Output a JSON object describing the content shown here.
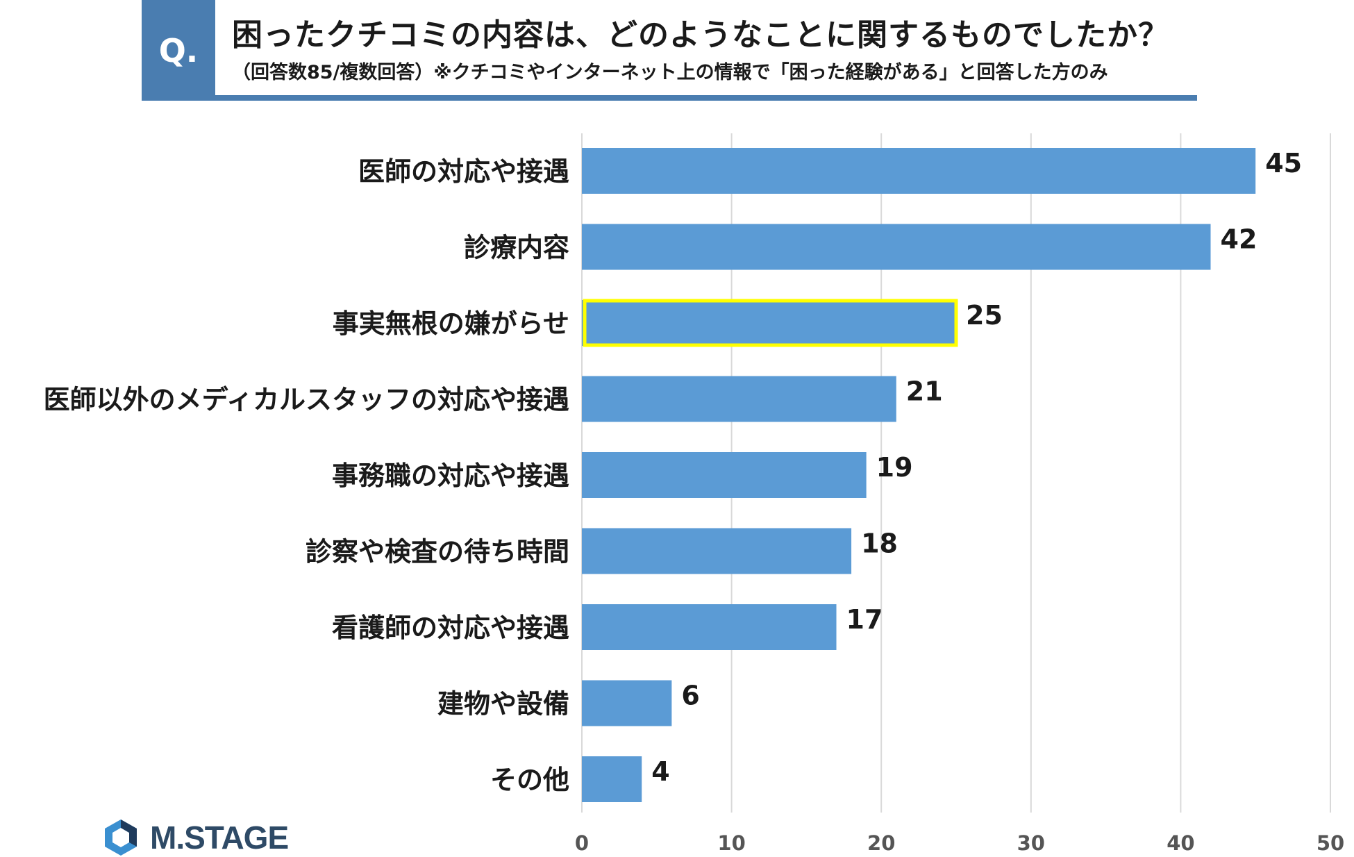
{
  "header": {
    "badge": "Q.",
    "title": "困ったクチコミの内容は、どのようなことに関するものでしたか？",
    "subtitle": "（回答数85/複数回答）※クチコミやインターネット上の情報で「困った経験がある」と回答した方のみ"
  },
  "logo": {
    "text": "M.STAGE",
    "icon": "hexagon-logo-icon"
  },
  "colors": {
    "bar": "#5b9bd5",
    "highlight": "#ffff00",
    "header": "#4a7db0",
    "grid": "#d9d9d9"
  },
  "chart_data": {
    "type": "bar",
    "orientation": "horizontal",
    "categories": [
      "医師の対応や接遇",
      "診療内容",
      "事実無根の嫌がらせ",
      "医師以外のメディカルスタッフの対応や接遇",
      "事務職の対応や接遇",
      "診察や検査の待ち時間",
      "看護師の対応や接遇",
      "建物や設備",
      "その他"
    ],
    "values": [
      45,
      42,
      25,
      21,
      19,
      18,
      17,
      6,
      4
    ],
    "highlight_index": 2,
    "xlim": [
      0,
      50
    ],
    "xticks": [
      0,
      10,
      20,
      30,
      40,
      50
    ],
    "grid": true
  }
}
